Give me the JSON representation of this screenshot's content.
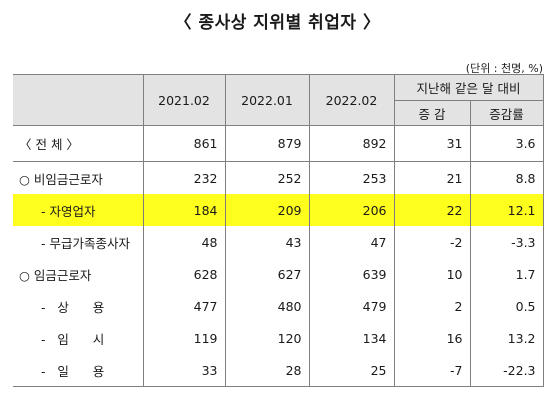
{
  "title": "〈 종사상 지위별 취업자 〉",
  "unit": "(단위 : 천명, %)",
  "columns": [
    "2021.02",
    "2022.01",
    "2022.02"
  ],
  "change_header": "지난해 같은 달 대비",
  "change_sub": [
    "증 감",
    "증감률"
  ],
  "rows": [
    {
      "label": "〈 전        체 〉",
      "values": [
        "861",
        "879",
        "892",
        "31",
        "3.6"
      ],
      "highlight": false
    },
    {
      "label": "○ 비임금근로자",
      "values": [
        "232",
        "252",
        "253",
        "21",
        "8.8"
      ],
      "highlight": false
    },
    {
      "label": "- 자영업자",
      "values": [
        "184",
        "209",
        "206",
        "22",
        "12.1"
      ],
      "highlight": true
    },
    {
      "label": "- 무급가족종사자",
      "values": [
        "48",
        "43",
        "47",
        "-2",
        "-3.3"
      ],
      "highlight": false
    },
    {
      "label": "○ 임금근로자",
      "values": [
        "628",
        "627",
        "639",
        "10",
        "1.7"
      ],
      "highlight": false
    },
    {
      "label": "-   상      용",
      "values": [
        "477",
        "480",
        "479",
        "2",
        "0.5"
      ],
      "highlight": false
    },
    {
      "label": "-   임      시",
      "values": [
        "119",
        "120",
        "134",
        "16",
        "13.2"
      ],
      "highlight": false
    },
    {
      "label": "-   일      용",
      "values": [
        "33",
        "28",
        "25",
        "-7",
        "-22.3"
      ],
      "highlight": false
    }
  ]
}
